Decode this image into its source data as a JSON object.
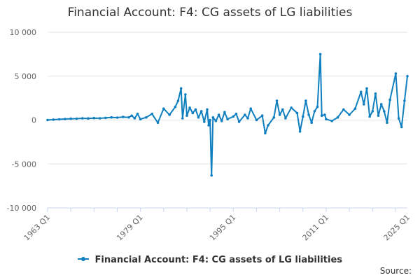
{
  "title": "Financial Account: F4: CG assets of LG liabilities",
  "source_label": "Source:",
  "colors": {
    "series": "#0f7fbf",
    "grid": "#e6e6e6",
    "axis": "#ccd6eb",
    "text": "#333333"
  },
  "chart_data": {
    "type": "line",
    "title": "Financial Account: F4: CG assets of LG liabilities",
    "xlabel": "",
    "ylabel": "",
    "ylim": [
      -10000,
      10000
    ],
    "y_ticks": [
      10000,
      5000,
      0,
      -5000,
      -10000
    ],
    "y_tick_labels": [
      "10 000",
      "5 000",
      "0",
      "-5 000",
      "-10 000"
    ],
    "x_tick_labels": [
      "1963 Q1",
      "1979 Q1",
      "1995 Q1",
      "2011 Q1",
      "2025 Q1"
    ],
    "x_tick_years": [
      1963,
      1979,
      1995,
      2011,
      2025
    ],
    "grid": true,
    "legend_position": "bottom-center",
    "series": [
      {
        "name": "Financial Account: F4: CG assets of LG liabilities",
        "points": [
          [
            "1963 Q1",
            0
          ],
          [
            "1964 Q1",
            50
          ],
          [
            "1965 Q1",
            80
          ],
          [
            "1966 Q1",
            120
          ],
          [
            "1967 Q1",
            150
          ],
          [
            "1968 Q1",
            160
          ],
          [
            "1969 Q1",
            200
          ],
          [
            "1970 Q1",
            180
          ],
          [
            "1971 Q1",
            220
          ],
          [
            "1972 Q1",
            200
          ],
          [
            "1973 Q1",
            250
          ],
          [
            "1974 Q1",
            300
          ],
          [
            "1975 Q1",
            280
          ],
          [
            "1976 Q1",
            350
          ],
          [
            "1977 Q1",
            300
          ],
          [
            "1977 Q3",
            500
          ],
          [
            "1978 Q1",
            200
          ],
          [
            "1978 Q3",
            700
          ],
          [
            "1979 Q1",
            100
          ],
          [
            "1980 Q1",
            300
          ],
          [
            "1981 Q1",
            700
          ],
          [
            "1982 Q1",
            -300
          ],
          [
            "1983 Q1",
            1300
          ],
          [
            "1984 Q1",
            600
          ],
          [
            "1985 Q1",
            1500
          ],
          [
            "1985 Q3",
            2200
          ],
          [
            "1986 Q1",
            3600
          ],
          [
            "1986 Q2",
            200
          ],
          [
            "1986 Q4",
            2900
          ],
          [
            "1987 Q1",
            500
          ],
          [
            "1987 Q3",
            1400
          ],
          [
            "1988 Q1",
            800
          ],
          [
            "1988 Q3",
            1200
          ],
          [
            "1989 Q1",
            300
          ],
          [
            "1989 Q3",
            1000
          ],
          [
            "1990 Q1",
            -200
          ],
          [
            "1990 Q3",
            1200
          ],
          [
            "1990 Q4",
            -600
          ],
          [
            "1991 Q1",
            0
          ],
          [
            "1991 Q2",
            -6300
          ],
          [
            "1991 Q3",
            300
          ],
          [
            "1992 Q1",
            -100
          ],
          [
            "1992 Q3",
            600
          ],
          [
            "1993 Q1",
            -100
          ],
          [
            "1993 Q3",
            900
          ],
          [
            "1994 Q1",
            100
          ],
          [
            "1995 Q1",
            400
          ],
          [
            "1995 Q3",
            700
          ],
          [
            "1996 Q1",
            -200
          ],
          [
            "1997 Q1",
            600
          ],
          [
            "1997 Q3",
            200
          ],
          [
            "1998 Q1",
            1300
          ],
          [
            "1999 Q1",
            0
          ],
          [
            "2000 Q1",
            500
          ],
          [
            "2000 Q3",
            -1500
          ],
          [
            "2001 Q1",
            -600
          ],
          [
            "2002 Q1",
            300
          ],
          [
            "2002 Q3",
            2200
          ],
          [
            "2003 Q1",
            600
          ],
          [
            "2003 Q3",
            1200
          ],
          [
            "2004 Q1",
            200
          ],
          [
            "2005 Q1",
            1400
          ],
          [
            "2006 Q1",
            800
          ],
          [
            "2006 Q3",
            -1300
          ],
          [
            "2007 Q1",
            400
          ],
          [
            "2007 Q3",
            2200
          ],
          [
            "2008 Q1",
            600
          ],
          [
            "2008 Q3",
            -300
          ],
          [
            "2009 Q1",
            1000
          ],
          [
            "2009 Q3",
            1500
          ],
          [
            "2010 Q1",
            7500
          ],
          [
            "2010 Q2",
            500
          ],
          [
            "2010 Q4",
            600
          ],
          [
            "2011 Q1",
            100
          ],
          [
            "2012 Q1",
            -100
          ],
          [
            "2013 Q1",
            300
          ],
          [
            "2014 Q1",
            1200
          ],
          [
            "2015 Q1",
            600
          ],
          [
            "2016 Q1",
            1300
          ],
          [
            "2017 Q1",
            3200
          ],
          [
            "2017 Q3",
            1800
          ],
          [
            "2018 Q1",
            3600
          ],
          [
            "2018 Q3",
            400
          ],
          [
            "2019 Q1",
            1000
          ],
          [
            "2019 Q3",
            3000
          ],
          [
            "2020 Q1",
            500
          ],
          [
            "2020 Q3",
            1800
          ],
          [
            "2021 Q1",
            1000
          ],
          [
            "2021 Q3",
            -300
          ],
          [
            "2022 Q1",
            2300
          ],
          [
            "2023 Q1",
            5300
          ],
          [
            "2023 Q3",
            200
          ],
          [
            "2024 Q1",
            -800
          ],
          [
            "2024 Q3",
            2200
          ],
          [
            "2025 Q1",
            5000
          ]
        ]
      }
    ]
  }
}
